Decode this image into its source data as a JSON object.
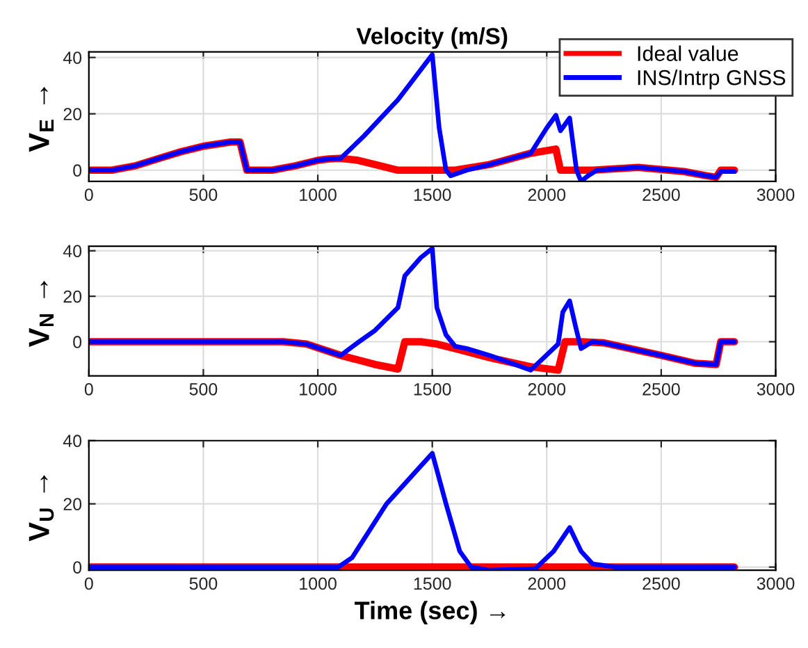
{
  "chart_data": [
    {
      "type": "line",
      "title": "Velocity (m/S)",
      "ylabel": "V$_{E}$ →",
      "xlim": [
        0,
        3000
      ],
      "xticks": [
        0,
        500,
        1000,
        1500,
        2000,
        2500,
        3000
      ],
      "ylim": [
        -4,
        42
      ],
      "yticks": [
        0,
        20,
        40
      ],
      "grid": true,
      "legend": "top right",
      "line_style": "solid",
      "series": [
        {
          "name": "Ideal value",
          "color": "#ff0000",
          "x": [
            0,
            100,
            200,
            300,
            400,
            500,
            620,
            660,
            690,
            800,
            900,
            1000,
            1050,
            1100,
            1175,
            1250,
            1350,
            1600,
            1750,
            1930,
            2040,
            2060,
            2200,
            2400,
            2600,
            2700,
            2740,
            2760,
            2820
          ],
          "values": [
            0,
            0,
            1.5,
            4,
            6.5,
            8.5,
            10,
            10,
            0,
            0,
            1.5,
            3.5,
            4,
            4.2,
            3.5,
            2,
            0,
            0,
            2,
            6,
            7.5,
            0,
            0,
            1,
            -0.5,
            -2,
            -2.5,
            0,
            0
          ]
        },
        {
          "name": "INS/Intrp GNSS",
          "color": "#0000ff",
          "x": [
            0,
            100,
            200,
            300,
            400,
            500,
            620,
            660,
            690,
            800,
            900,
            1000,
            1050,
            1100,
            1200,
            1350,
            1500,
            1530,
            1560,
            1580,
            1650,
            1750,
            1930,
            2000,
            2040,
            2060,
            2100,
            2130,
            2150,
            2180,
            2220,
            2400,
            2600,
            2700,
            2740,
            2760,
            2820
          ],
          "values": [
            0,
            0,
            1.5,
            4,
            6.5,
            8.5,
            10,
            10,
            0,
            0,
            1.5,
            3.5,
            4,
            4.2,
            12,
            25,
            41,
            15,
            0,
            -2,
            0,
            2,
            6,
            15,
            19.5,
            14,
            18.5,
            0,
            -4,
            -2,
            0,
            1,
            -0.5,
            -2,
            -2.5,
            -0.5,
            -0.5
          ]
        }
      ]
    },
    {
      "type": "line",
      "ylabel": "V$_{N}$ →",
      "xlim": [
        0,
        3000
      ],
      "xticks": [
        0,
        500,
        1000,
        1500,
        2000,
        2500,
        3000
      ],
      "ylim": [
        -15,
        42
      ],
      "yticks": [
        0,
        20,
        40
      ],
      "grid": true,
      "line_style": "solid",
      "series": [
        {
          "color": "#ff0000",
          "x": [
            0,
            850,
            950,
            1100,
            1250,
            1350,
            1380,
            1450,
            1520,
            1600,
            1750,
            1930,
            2050,
            2080,
            2150,
            2250,
            2500,
            2650,
            2740,
            2760,
            2820
          ],
          "values": [
            0,
            0,
            -1,
            -6,
            -10,
            -12,
            0,
            0,
            -1,
            -3,
            -7,
            -11,
            -12.5,
            0,
            0,
            -0.5,
            -6,
            -9.5,
            -10,
            0,
            0
          ]
        },
        {
          "color": "#0000ff",
          "x": [
            0,
            850,
            950,
            1100,
            1180,
            1250,
            1350,
            1380,
            1450,
            1500,
            1520,
            1560,
            1600,
            1650,
            1750,
            1930,
            2050,
            2070,
            2100,
            2130,
            2150,
            2200,
            2250,
            2500,
            2650,
            2740,
            2760,
            2820
          ],
          "values": [
            0,
            0,
            -1,
            -6,
            0,
            5,
            15,
            29,
            37,
            41,
            15,
            3,
            -2,
            -3,
            -6,
            -12.5,
            -1,
            13,
            18,
            5,
            -3,
            0,
            -0.5,
            -6,
            -9.5,
            -10,
            0,
            0
          ]
        }
      ]
    },
    {
      "type": "line",
      "ylabel": "V$_{U}$ →",
      "xlabel": "Time (sec) →",
      "xlim": [
        0,
        3000
      ],
      "xticks": [
        0,
        500,
        1000,
        1500,
        2000,
        2500,
        3000
      ],
      "ylim": [
        -1,
        40
      ],
      "yticks": [
        0,
        20,
        40
      ],
      "grid": true,
      "line_style": "solid",
      "series": [
        {
          "color": "#ff0000",
          "x": [
            0,
            2820
          ],
          "values": [
            0,
            0
          ]
        },
        {
          "color": "#0000ff",
          "x": [
            0,
            1090,
            1150,
            1300,
            1500,
            1560,
            1620,
            1670,
            1750,
            1950,
            2030,
            2100,
            2150,
            2200,
            2300,
            2820
          ],
          "values": [
            0,
            0,
            3,
            20,
            36,
            20,
            5,
            0,
            -1,
            -0.5,
            5,
            12.5,
            5,
            1,
            0,
            0
          ]
        }
      ]
    }
  ]
}
